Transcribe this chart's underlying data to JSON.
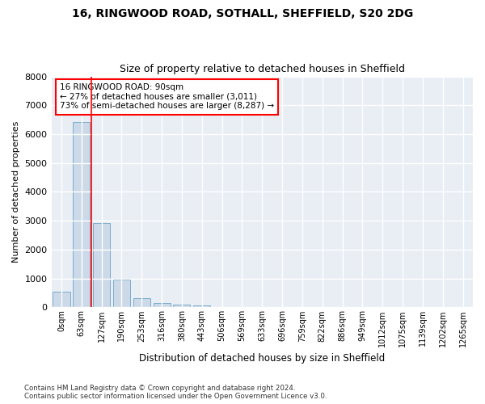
{
  "title_line1": "16, RINGWOOD ROAD, SOTHALL, SHEFFIELD, S20 2DG",
  "title_line2": "Size of property relative to detached houses in Sheffield",
  "xlabel": "Distribution of detached houses by size in Sheffield",
  "ylabel": "Number of detached properties",
  "footnote": "Contains HM Land Registry data © Crown copyright and database right 2024.\nContains public sector information licensed under the Open Government Licence v3.0.",
  "categories": [
    "0sqm",
    "63sqm",
    "127sqm",
    "190sqm",
    "253sqm",
    "316sqm",
    "380sqm",
    "443sqm",
    "506sqm",
    "569sqm",
    "633sqm",
    "696sqm",
    "759sqm",
    "822sqm",
    "886sqm",
    "949sqm",
    "1012sqm",
    "1075sqm",
    "1139sqm",
    "1202sqm",
    "1265sqm"
  ],
  "values": [
    530,
    6430,
    2920,
    960,
    330,
    155,
    100,
    65,
    0,
    0,
    0,
    0,
    0,
    0,
    0,
    0,
    0,
    0,
    0,
    0,
    0
  ],
  "bar_color": "#ccd9e8",
  "bar_edge_color": "#7aaccc",
  "background_color": "#e8eef4",
  "grid_color": "#ffffff",
  "red_line_x": 1.5,
  "annotation_text": "16 RINGWOOD ROAD: 90sqm\n← 27% of detached houses are smaller (3,011)\n73% of semi-detached houses are larger (8,287) →",
  "ylim": [
    0,
    8000
  ],
  "yticks": [
    0,
    1000,
    2000,
    3000,
    4000,
    5000,
    6000,
    7000,
    8000
  ]
}
